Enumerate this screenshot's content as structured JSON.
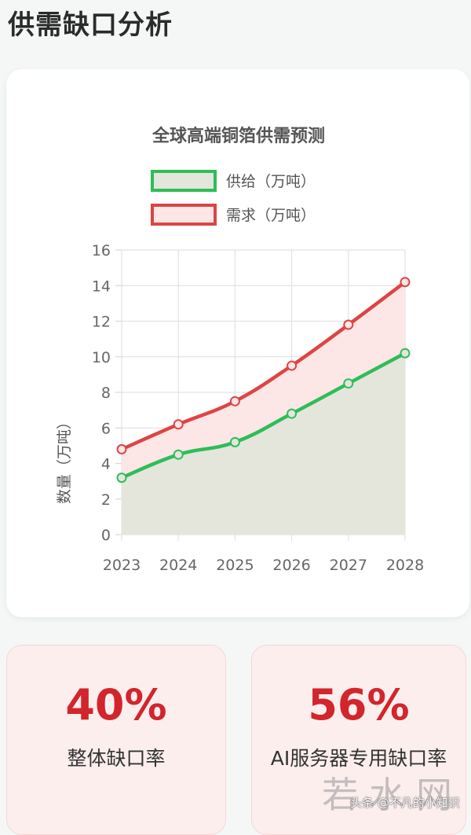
{
  "page": {
    "title": "供需缺口分析"
  },
  "chart_data": {
    "type": "area",
    "title": "全球高端铜箔供需预测",
    "ylabel": "数量（万吨）",
    "xlabel": "",
    "x": [
      "2023",
      "2024",
      "2025",
      "2026",
      "2027",
      "2028"
    ],
    "ylim": [
      0,
      16
    ],
    "yticks": [
      0,
      2,
      4,
      6,
      8,
      10,
      12,
      14,
      16
    ],
    "grid": true,
    "legend_position": "top",
    "series": [
      {
        "name": "供给（万吨）",
        "values": [
          3.2,
          4.5,
          5.2,
          6.8,
          8.5,
          10.2
        ],
        "color": "#2ebd59",
        "fill": "#e4e6dc"
      },
      {
        "name": "需求（万吨）",
        "values": [
          4.8,
          6.2,
          7.5,
          9.5,
          11.8,
          14.2
        ],
        "color": "#dd4444",
        "fill": "#fce6e6"
      }
    ]
  },
  "stats": [
    {
      "value": "40%",
      "label": "整体缺口率"
    },
    {
      "value": "56%",
      "label": "AI服务器专用缺口率"
    }
  ],
  "watermark": {
    "brand": "若水网",
    "text": "头条 @不凡的小知识"
  }
}
